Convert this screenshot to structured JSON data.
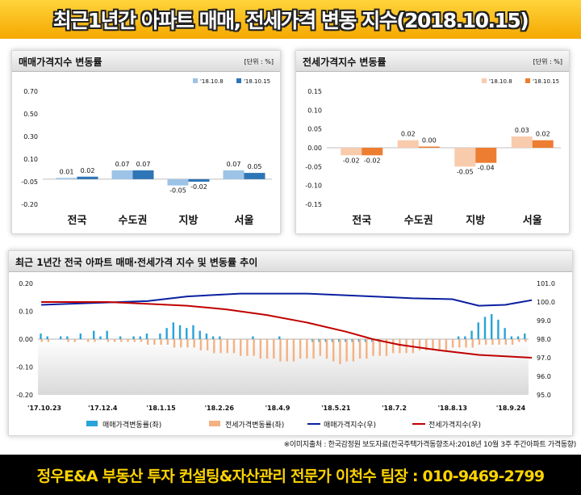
{
  "header": {
    "title": "최근1년간 아파트 매매, 전세가격 변동 지수(2018.10.15)"
  },
  "panels": {
    "sale": {
      "title": "매매가격지수 변동률",
      "unit": "[단위 : %]"
    },
    "lease": {
      "title": "전세가격지수 변동률",
      "unit": "[단위 : %]"
    },
    "trend": {
      "title": "최근 1년간 전국 아파트 매매·전세가격 지수 및 변동률 추이"
    }
  },
  "source_note": "※이미지출처 : 한국감정원 보도자료(전국주택가격동향조사:2018년 10월 3주 주간아파트 가격동향)",
  "footer": {
    "text": "정우E&A 부동산 투자 컨설팅&자산관리 전문가 이천수 팀장 : 010-9469-2799"
  },
  "colors": {
    "sale_prev": "#9dc3e6",
    "sale_curr": "#2e75b6",
    "lease_prev": "#f8cbad",
    "lease_curr": "#ed7d31",
    "sale_bar": "#29a3d9",
    "lease_bar": "#f4b183",
    "sale_index": "#0a1fa0",
    "lease_index": "#c00000"
  },
  "chart_data": [
    {
      "type": "bar",
      "title": "매매가격지수 변동률",
      "unit": "[단위 : %]",
      "categories": [
        "전국",
        "수도권",
        "지방",
        "서울"
      ],
      "series": [
        {
          "name": "'18.10.8",
          "values": [
            0.01,
            0.07,
            -0.05,
            0.07
          ]
        },
        {
          "name": "'18.10.15",
          "values": [
            0.02,
            0.07,
            -0.02,
            0.05
          ]
        }
      ],
      "ylim": [
        -0.2,
        0.7
      ],
      "yticks": [
        "0.70",
        "0.60",
        "0.50",
        "0.40",
        "0.30",
        "0.20",
        "0.10",
        "0.00",
        "-0.10",
        "-0.20"
      ],
      "ytick_labels": [
        "0.70",
        "0.50",
        "0.30",
        "0.10",
        "-0.05",
        "-0.20"
      ],
      "data_labels": [
        [
          "0.01",
          "0.07",
          "-0.05",
          "0.07"
        ],
        [
          "0.02",
          "0.07",
          "-0.02",
          "0.05"
        ]
      ],
      "legend_placement": "top-right"
    },
    {
      "type": "bar",
      "title": "전세가격지수 변동률",
      "unit": "[단위 : %]",
      "categories": [
        "전국",
        "수도권",
        "지방",
        "서울"
      ],
      "series": [
        {
          "name": "'18.10.8",
          "values": [
            -0.02,
            0.02,
            -0.05,
            0.03
          ]
        },
        {
          "name": "'18.10.15",
          "values": [
            -0.02,
            0.0,
            -0.04,
            0.02
          ]
        }
      ],
      "ylim": [
        -0.15,
        0.15
      ],
      "ytick_labels": [
        "0.15",
        "0.10",
        "0.05",
        "0.00",
        "-0.05",
        "-0.10",
        "-0.15"
      ],
      "data_labels": [
        [
          "-0.02",
          "0.02",
          "-0.05",
          "0.03"
        ],
        [
          "-0.02",
          "0.00",
          "-0.04",
          "0.02"
        ]
      ],
      "legend_placement": "top-right"
    },
    {
      "type": "bar",
      "title": "최근 1년간 전국 아파트 매매·전세가격 지수 및 변동률 추이",
      "x_labels": [
        "'17.10.23",
        "'17.12.4",
        "'18.1.15",
        "'18.2.26",
        "'18.4.9",
        "'18.5.21",
        "'18.7.2",
        "'18.8.13",
        "'18.9.24"
      ],
      "left_axis": {
        "ylim": [
          -0.2,
          0.2
        ],
        "tick_labels": [
          "0.20",
          "0.10",
          "0.00",
          "-0.10",
          "-0.20"
        ]
      },
      "right_axis": {
        "ylim": [
          95.0,
          101.0
        ],
        "tick_labels": [
          "101.0",
          "100.0",
          "99.0",
          "98.0",
          "97.0",
          "96.0",
          "95.0"
        ]
      },
      "series": [
        {
          "name": "매매가격변동률(좌)",
          "type": "bar",
          "axis": "left",
          "values": [
            0.02,
            0.01,
            0.0,
            0.01,
            0.01,
            0.0,
            0.02,
            0.0,
            0.03,
            0.01,
            0.03,
            0.0,
            0.01,
            0.0,
            0.01,
            0.01,
            0.02,
            0.0,
            0.02,
            0.04,
            0.06,
            0.05,
            0.04,
            0.05,
            0.03,
            0.02,
            0.01,
            0.01,
            0.0,
            0.0,
            0.0,
            0.0,
            0.01,
            0.0,
            0.0,
            0.0,
            0.01,
            0.0,
            0.0,
            0.0,
            0.0,
            -0.01,
            -0.01,
            -0.01,
            -0.01,
            -0.01,
            -0.01,
            -0.01,
            -0.01,
            -0.01,
            -0.01,
            -0.01,
            0.0,
            0.0,
            0.0,
            0.0,
            0.0,
            0.0,
            0.0,
            0.0,
            0.0,
            0.0,
            0.0,
            0.01,
            0.01,
            0.03,
            0.06,
            0.08,
            0.09,
            0.07,
            0.04,
            0.01,
            0.01,
            0.02
          ]
        },
        {
          "name": "전세가격변동률(좌)",
          "type": "bar",
          "axis": "left",
          "values": [
            -0.01,
            -0.01,
            0.0,
            0.0,
            -0.01,
            -0.01,
            0.0,
            -0.01,
            -0.01,
            0.0,
            -0.01,
            -0.01,
            -0.01,
            -0.01,
            -0.01,
            -0.01,
            -0.02,
            -0.02,
            -0.02,
            -0.02,
            -0.03,
            -0.03,
            -0.03,
            -0.03,
            -0.04,
            -0.04,
            -0.05,
            -0.05,
            -0.05,
            -0.05,
            -0.06,
            -0.06,
            -0.06,
            -0.07,
            -0.07,
            -0.07,
            -0.08,
            -0.08,
            -0.08,
            -0.07,
            -0.07,
            -0.07,
            -0.06,
            -0.07,
            -0.08,
            -0.09,
            -0.08,
            -0.08,
            -0.07,
            -0.07,
            -0.06,
            -0.06,
            -0.06,
            -0.05,
            -0.05,
            -0.05,
            -0.05,
            -0.04,
            -0.04,
            -0.04,
            -0.04,
            -0.04,
            -0.03,
            -0.03,
            -0.03,
            -0.03,
            -0.02,
            -0.02,
            -0.02,
            -0.02,
            -0.02,
            -0.02,
            -0.01,
            -0.01
          ]
        },
        {
          "name": "매매가격지수(우)",
          "type": "line",
          "axis": "right",
          "points": [
            [
              0,
              99.85
            ],
            [
              8,
              99.95
            ],
            [
              16,
              100.05
            ],
            [
              22,
              100.3
            ],
            [
              30,
              100.45
            ],
            [
              40,
              100.45
            ],
            [
              50,
              100.3
            ],
            [
              56,
              100.2
            ],
            [
              62,
              100.15
            ],
            [
              66,
              99.8
            ],
            [
              70,
              99.85
            ],
            [
              74,
              100.1
            ]
          ]
        },
        {
          "name": "전세가격지수(우)",
          "type": "line",
          "axis": "right",
          "points": [
            [
              0,
              100.0
            ],
            [
              10,
              100.0
            ],
            [
              16,
              99.9
            ],
            [
              22,
              99.8
            ],
            [
              28,
              99.6
            ],
            [
              34,
              99.3
            ],
            [
              40,
              98.9
            ],
            [
              46,
              98.4
            ],
            [
              50,
              98.0
            ],
            [
              54,
              97.7
            ],
            [
              60,
              97.4
            ],
            [
              66,
              97.15
            ],
            [
              74,
              97.0
            ]
          ]
        }
      ],
      "legend_placement": "bottom"
    }
  ]
}
